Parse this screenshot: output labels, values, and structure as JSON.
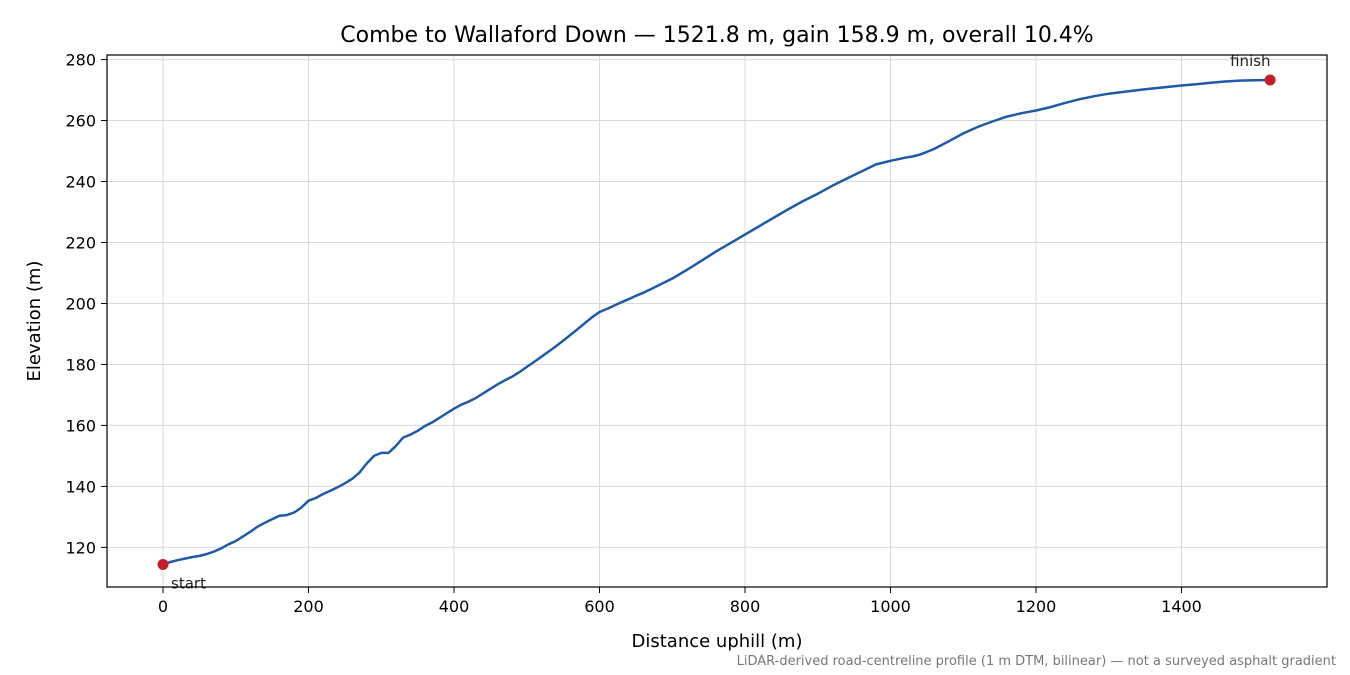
{
  "chart_data": {
    "type": "line",
    "title": "Combe to Wallaford Down — 1521.8 m, gain 158.9 m, overall 10.4%",
    "xlabel": "Distance uphill (m)",
    "ylabel": "Elevation (m)",
    "xlim": [
      -77,
      1600
    ],
    "ylim": [
      107,
      281.5
    ],
    "xticks": [
      0,
      200,
      400,
      600,
      800,
      1000,
      1200,
      1400
    ],
    "yticks": [
      120,
      140,
      160,
      180,
      200,
      220,
      240,
      260,
      280
    ],
    "grid": true,
    "line_color": "#1f5aa8",
    "marker_color": "#c41e2a",
    "series": [
      {
        "x": [
          0,
          10,
          20,
          30,
          40,
          50,
          60,
          70,
          80,
          90,
          100,
          110,
          120,
          130,
          140,
          150,
          160,
          170,
          180,
          190,
          200,
          210,
          220,
          230,
          240,
          250,
          260,
          270,
          280,
          290,
          300,
          310,
          320,
          330,
          340,
          350,
          360,
          370,
          380,
          390,
          400,
          410,
          420,
          430,
          440,
          450,
          460,
          470,
          480,
          490,
          500,
          510,
          520,
          530,
          540,
          550,
          560,
          570,
          580,
          590,
          600,
          610,
          620,
          630,
          640,
          650,
          660,
          670,
          680,
          690,
          700,
          720,
          740,
          760,
          780,
          800,
          820,
          840,
          860,
          880,
          900,
          920,
          940,
          960,
          980,
          1000,
          1010,
          1020,
          1030,
          1040,
          1050,
          1060,
          1080,
          1100,
          1120,
          1140,
          1160,
          1180,
          1200,
          1220,
          1240,
          1260,
          1280,
          1300,
          1320,
          1340,
          1360,
          1380,
          1400,
          1420,
          1440,
          1460,
          1480,
          1500,
          1521.8
        ],
        "y": [
          114.4,
          115.2,
          115.8,
          116.3,
          116.8,
          117.2,
          117.8,
          118.6,
          119.7,
          121.0,
          122.1,
          123.6,
          125.1,
          126.8,
          128.1,
          129.2,
          130.4,
          130.6,
          131.4,
          133.0,
          135.3,
          136.2,
          137.5,
          138.6,
          139.7,
          141.0,
          142.5,
          144.5,
          147.5,
          150.0,
          151.0,
          151.0,
          153.2,
          156.0,
          157.0,
          158.2,
          159.8,
          161.0,
          162.5,
          164.0,
          165.5,
          166.8,
          167.8,
          169.0,
          170.5,
          172.0,
          173.5,
          174.8,
          176.0,
          177.5,
          179.2,
          180.8,
          182.5,
          184.2,
          186.0,
          187.8,
          189.7,
          191.6,
          193.6,
          195.5,
          197.2,
          198.2,
          199.3,
          200.4,
          201.4,
          202.5,
          203.5,
          204.6,
          205.8,
          207.0,
          208.2,
          211.0,
          214.0,
          217.0,
          219.8,
          222.6,
          225.4,
          228.2,
          231.0,
          233.6,
          236.0,
          238.6,
          241.0,
          243.3,
          245.6,
          246.8,
          247.3,
          247.8,
          248.2,
          248.8,
          249.7,
          250.7,
          253.2,
          255.8,
          257.9,
          259.7,
          261.3,
          262.4,
          263.3,
          264.4,
          265.8,
          267.0,
          268.0,
          268.8,
          269.4,
          270.0,
          270.5,
          271.0,
          271.5,
          271.9,
          272.4,
          272.8,
          273.1,
          273.2,
          273.3
        ]
      }
    ],
    "markers": [
      {
        "x": 0,
        "y": 114.4,
        "label": "start"
      },
      {
        "x": 1521.8,
        "y": 273.3,
        "label": "finish"
      }
    ],
    "footnote": "LiDAR-derived road-centreline profile (1 m DTM, bilinear) — not a surveyed asphalt gradient"
  }
}
